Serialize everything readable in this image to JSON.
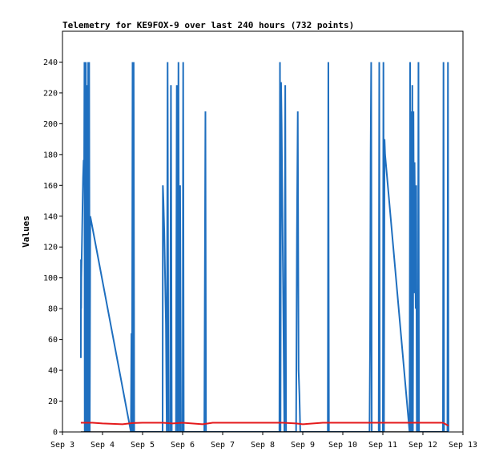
{
  "chart_data": {
    "type": "line",
    "title": "Telemetry for KE9FOX-9 over last 240 hours (732 points)",
    "xlabel": "",
    "ylabel": "Values",
    "x_tick_labels": [
      "Sep 3",
      "Sep 4",
      "Sep 5",
      "Sep 6",
      "Sep 7",
      "Sep 8",
      "Sep 9",
      "Sep 10",
      "Sep 11",
      "Sep 12",
      "Sep 13"
    ],
    "xlim": [
      "2023-09-03T00:00",
      "2023-09-13T00:00"
    ],
    "y_ticks": [
      0,
      20,
      40,
      60,
      80,
      100,
      120,
      140,
      160,
      180,
      200,
      220,
      240
    ],
    "ylim": [
      0,
      260
    ],
    "grid": false,
    "legend": "none",
    "series": [
      {
        "color": "#1f6fbf",
        "points": [
          [
            "2023-09-03T11:00",
            48
          ],
          [
            "2023-09-03T11:06",
            112
          ],
          [
            "2023-09-03T11:12",
            80
          ],
          [
            "2023-09-03T11:18",
            100
          ],
          [
            "2023-09-03T11:40",
            122
          ],
          [
            "2023-09-03T12:00",
            145
          ],
          [
            "2023-09-03T12:20",
            165
          ],
          [
            "2023-09-03T12:40",
            176
          ],
          [
            "2023-09-03T13:00",
            176
          ],
          [
            "2023-09-03T13:10",
            240
          ],
          [
            "2023-09-03T13:20",
            0
          ],
          [
            "2023-09-03T13:30",
            240
          ],
          [
            "2023-09-03T13:45",
            0
          ],
          [
            "2023-09-03T14:00",
            240
          ],
          [
            "2023-09-03T14:15",
            0
          ],
          [
            "2023-09-03T14:30",
            225
          ],
          [
            "2023-09-03T14:45",
            0
          ],
          [
            "2023-09-03T15:00",
            192
          ],
          [
            "2023-09-03T15:15",
            0
          ],
          [
            "2023-09-03T15:25",
            240
          ],
          [
            "2023-09-03T15:40",
            0
          ],
          [
            "2023-09-03T16:00",
            240
          ],
          [
            "2023-09-03T16:20",
            0
          ],
          [
            "2023-09-03T16:40",
            140
          ],
          [
            "2023-09-04T17:00",
            0
          ],
          [
            "2023-09-04T17:20",
            64
          ],
          [
            "2023-09-04T17:40",
            0
          ],
          [
            "2023-09-04T18:00",
            240
          ],
          [
            "2023-09-04T18:20",
            0
          ],
          [
            "2023-09-04T18:40",
            240
          ],
          [
            "2023-09-04T19:00",
            0
          ],
          [
            "2023-09-05T12:00",
            0
          ],
          [
            "2023-09-05T12:10",
            160
          ],
          [
            "2023-09-05T12:30",
            150
          ],
          [
            "2023-09-05T13:00",
            130
          ],
          [
            "2023-09-05T13:30",
            100
          ],
          [
            "2023-09-05T14:00",
            70
          ],
          [
            "2023-09-05T14:30",
            0
          ],
          [
            "2023-09-05T15:00",
            240
          ],
          [
            "2023-09-05T15:30",
            0
          ],
          [
            "2023-09-05T16:30",
            0
          ],
          [
            "2023-09-05T17:00",
            225
          ],
          [
            "2023-09-05T17:30",
            0
          ],
          [
            "2023-09-05T20:00",
            0
          ],
          [
            "2023-09-05T20:30",
            225
          ],
          [
            "2023-09-05T21:00",
            0
          ],
          [
            "2023-09-05T21:30",
            240
          ],
          [
            "2023-09-05T22:00",
            0
          ],
          [
            "2023-09-05T22:30",
            160
          ],
          [
            "2023-09-05T23:00",
            0
          ],
          [
            "2023-09-06T00:00",
            0
          ],
          [
            "2023-09-06T00:20",
            240
          ],
          [
            "2023-09-06T00:40",
            0
          ],
          [
            "2023-09-06T13:00",
            0
          ],
          [
            "2023-09-06T13:20",
            104
          ],
          [
            "2023-09-06T13:40",
            208
          ],
          [
            "2023-09-06T14:00",
            0
          ],
          [
            "2023-09-08T10:00",
            0
          ],
          [
            "2023-09-08T10:20",
            240
          ],
          [
            "2023-09-08T10:40",
            0
          ],
          [
            "2023-09-08T11:00",
            227
          ],
          [
            "2023-09-08T11:20",
            200
          ],
          [
            "2023-09-08T11:40",
            160
          ],
          [
            "2023-09-08T12:00",
            120
          ],
          [
            "2023-09-08T12:30",
            60
          ],
          [
            "2023-09-08T13:00",
            0
          ],
          [
            "2023-09-08T13:30",
            225
          ],
          [
            "2023-09-08T14:00",
            0
          ],
          [
            "2023-09-08T20:00",
            0
          ],
          [
            "2023-09-08T20:30",
            128
          ],
          [
            "2023-09-08T21:00",
            208
          ],
          [
            "2023-09-08T21:30",
            40
          ],
          [
            "2023-09-08T22:00",
            24
          ],
          [
            "2023-09-08T22:30",
            0
          ],
          [
            "2023-09-09T15:00",
            0
          ],
          [
            "2023-09-09T15:20",
            240
          ],
          [
            "2023-09-09T15:40",
            0
          ],
          [
            "2023-09-10T16:00",
            0
          ],
          [
            "2023-09-10T16:20",
            60
          ],
          [
            "2023-09-10T16:40",
            180
          ],
          [
            "2023-09-10T17:00",
            240
          ],
          [
            "2023-09-10T17:20",
            0
          ],
          [
            "2023-09-10T21:30",
            0
          ],
          [
            "2023-09-10T21:50",
            240
          ],
          [
            "2023-09-10T22:10",
            0
          ],
          [
            "2023-09-11T00:00",
            0
          ],
          [
            "2023-09-11T00:20",
            240
          ],
          [
            "2023-09-11T00:40",
            0
          ],
          [
            "2023-09-11T01:00",
            190
          ],
          [
            "2023-09-11T01:20",
            180
          ],
          [
            "2023-09-11T16:00",
            0
          ],
          [
            "2023-09-11T16:20",
            240
          ],
          [
            "2023-09-11T16:40",
            0
          ],
          [
            "2023-09-11T17:00",
            208
          ],
          [
            "2023-09-11T17:20",
            0
          ],
          [
            "2023-09-11T17:40",
            225
          ],
          [
            "2023-09-11T18:00",
            0
          ],
          [
            "2023-09-11T18:20",
            208
          ],
          [
            "2023-09-11T18:40",
            90
          ],
          [
            "2023-09-11T19:00",
            175
          ],
          [
            "2023-09-11T19:20",
            125
          ],
          [
            "2023-09-11T19:40",
            80
          ],
          [
            "2023-09-11T20:00",
            160
          ],
          [
            "2023-09-11T20:20",
            0
          ],
          [
            "2023-09-11T21:00",
            0
          ],
          [
            "2023-09-11T21:20",
            240
          ],
          [
            "2023-09-11T21:40",
            0
          ],
          [
            "2023-09-12T12:00",
            0
          ],
          [
            "2023-09-12T12:20",
            240
          ],
          [
            "2023-09-12T12:40",
            0
          ],
          [
            "2023-09-12T14:40",
            0
          ],
          [
            "2023-09-12T15:00",
            240
          ],
          [
            "2023-09-12T15:20",
            0
          ]
        ]
      },
      {
        "color": "#e41a1c",
        "points": [
          [
            "2023-09-03T11:00",
            6
          ],
          [
            "2023-09-03T14:00",
            6
          ],
          [
            "2023-09-03T18:00",
            6
          ],
          [
            "2023-09-04T00:00",
            5.5
          ],
          [
            "2023-09-04T12:00",
            5
          ],
          [
            "2023-09-04T18:00",
            5.8
          ],
          [
            "2023-09-05T00:00",
            6
          ],
          [
            "2023-09-05T12:00",
            6
          ],
          [
            "2023-09-05T18:00",
            5.5
          ],
          [
            "2023-09-06T00:00",
            6
          ],
          [
            "2023-09-06T12:00",
            5
          ],
          [
            "2023-09-06T18:00",
            6
          ],
          [
            "2023-09-07T12:00",
            6
          ],
          [
            "2023-09-08T12:00",
            6
          ],
          [
            "2023-09-08T20:00",
            5.5
          ],
          [
            "2023-09-09T00:00",
            5
          ],
          [
            "2023-09-09T12:00",
            6
          ],
          [
            "2023-09-10T12:00",
            6
          ],
          [
            "2023-09-11T12:00",
            6
          ],
          [
            "2023-09-12T00:00",
            6
          ],
          [
            "2023-09-12T12:00",
            6
          ],
          [
            "2023-09-12T15:20",
            4
          ]
        ]
      },
      {
        "color": "#000000",
        "points": [
          [
            "2023-09-03T11:00",
            0
          ],
          [
            "2023-09-12T15:20",
            0
          ]
        ]
      }
    ]
  }
}
